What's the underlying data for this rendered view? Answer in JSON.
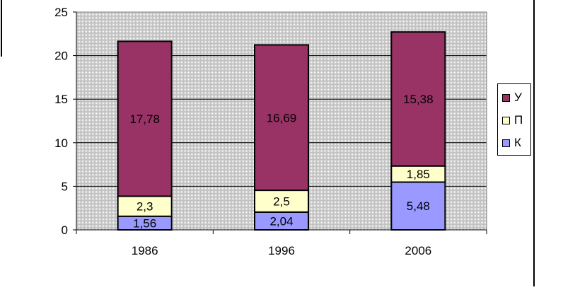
{
  "chart_data": {
    "type": "bar",
    "stacked": true,
    "categories": [
      "1986",
      "1996",
      "2006"
    ],
    "series": [
      {
        "name": "К",
        "values": [
          1.56,
          2.04,
          5.48
        ],
        "labels": [
          "1,56",
          "2,04",
          "5,48"
        ],
        "color": "#9999ff"
      },
      {
        "name": "П",
        "values": [
          2.3,
          2.5,
          1.85
        ],
        "labels": [
          "2,3",
          "2,5",
          "1,85"
        ],
        "color": "#ffffcc"
      },
      {
        "name": "У",
        "values": [
          17.78,
          16.69,
          15.38
        ],
        "labels": [
          "17,78",
          "16,69",
          "15,38"
        ],
        "color": "#993366"
      }
    ],
    "yticks": [
      "0",
      "5",
      "10",
      "15",
      "20",
      "25"
    ],
    "ylim": [
      0,
      25
    ],
    "grid": true,
    "plot_background": "#c0c0c0",
    "legend_position": "right",
    "legend_order": [
      "У",
      "П",
      "К"
    ]
  }
}
